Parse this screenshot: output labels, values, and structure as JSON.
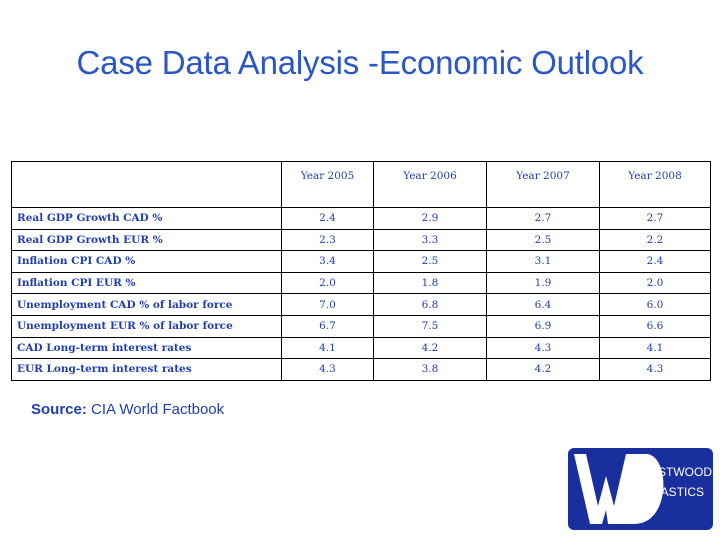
{
  "slide": {
    "title": "Case Data Analysis -Economic Outlook"
  },
  "table": {
    "headers": [
      "",
      "Year 2005",
      "Year 2006",
      "Year 2007",
      "Year 2008"
    ],
    "rows": [
      {
        "label": "Real GDP Growth CAD %",
        "values": [
          "2.4",
          "2.9",
          "2.7",
          "2.7"
        ]
      },
      {
        "label": "Real GDP Growth EUR %",
        "values": [
          "2.3",
          "3.3",
          "2.5",
          "2.2"
        ]
      },
      {
        "label": "Inflation CPI CAD %",
        "values": [
          "3.4",
          "2.5",
          "3.1",
          "2.4"
        ]
      },
      {
        "label": "Inflation CPI EUR %",
        "values": [
          "2.0",
          "1.8",
          "1.9",
          "2.0"
        ]
      },
      {
        "label": "Unemployment CAD % of labor force",
        "values": [
          "7.0",
          "6.8",
          "6.4",
          "6.0"
        ]
      },
      {
        "label": "Unemployment EUR % of labor force",
        "values": [
          "6.7",
          "7.5",
          "6.9",
          "6.6"
        ]
      },
      {
        "label": "CAD Long-term interest rates",
        "values": [
          "4.1",
          "4.2",
          "4.3",
          "4.1"
        ]
      },
      {
        "label": "EUR Long-term interest rates",
        "values": [
          "4.3",
          "3.8",
          "4.2",
          "4.3"
        ]
      }
    ]
  },
  "source": {
    "label": "Source:",
    "text": "CIA World Factbook"
  },
  "logo": {
    "line1": "ESTWOOD",
    "line2": "LASTICS",
    "color": "#1a2f9e"
  }
}
